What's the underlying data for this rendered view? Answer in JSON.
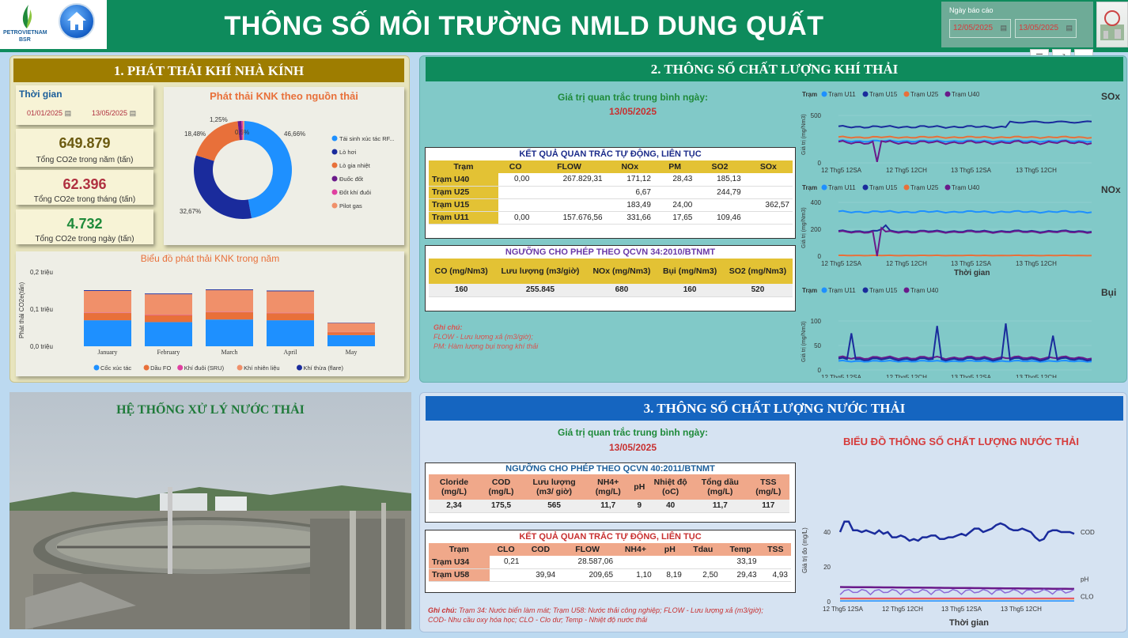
{
  "header": {
    "title": "THÔNG SỐ MÔI TRƯỜNG NMLD DUNG QUẤT",
    "logo_text": "PETROVIETNAM",
    "logo_sub": "BSR",
    "date_label": "Ngày báo cáo",
    "date_from": "12/05/2025",
    "date_to": "13/05/2025"
  },
  "section1": {
    "title": "1. PHÁT THẢI KHÍ NHÀ KÍNH",
    "time_label": "Thời gian",
    "time_from": "01/01/2025",
    "time_to": "13/05/2025",
    "kpis": [
      {
        "value": "649.879",
        "label": "Tổng CO2e trong năm (tấn)",
        "color": "#6b5a10"
      },
      {
        "value": "62.396",
        "label": "Tổng CO2e trong tháng (tấn)",
        "color": "#b03040"
      },
      {
        "value": "4.732",
        "label": "Tổng CO2e trong ngày (tấn)",
        "color": "#1f8a3a"
      }
    ],
    "donut": {
      "title": "Phát thải KNK theo nguồn thải",
      "slices": [
        {
          "name": "Tái sinh xúc tác RF...",
          "pct": 46.66,
          "label": "46,66%",
          "color": "#1e90ff"
        },
        {
          "name": "Lò hơi",
          "pct": 32.67,
          "label": "32,67%",
          "color": "#1a2b9c"
        },
        {
          "name": "Lò gia nhiệt",
          "pct": 18.48,
          "label": "18,48%",
          "color": "#e8703a"
        },
        {
          "name": "Đuốc đốt",
          "pct": 1.25,
          "label": "1,25%",
          "color": "#6a1a8a"
        },
        {
          "name": "Đốt khí đuôi",
          "pct": 0.5,
          "label": "0,5%",
          "color": "#e040a0"
        },
        {
          "name": "Pilot gas",
          "pct": 0.44,
          "label": "",
          "color": "#f0906a"
        }
      ]
    },
    "bar": {
      "title": "Biểu đồ phát thải KNK trong năm",
      "ylabel": "Phát thải CO2e(tấn)",
      "yticks": [
        "0,2 triệu",
        "0,1 triệu",
        "0,0 triệu"
      ],
      "ymax": 0.2,
      "categories": [
        "January",
        "February",
        "March",
        "April",
        "May"
      ],
      "series": [
        {
          "name": "Cốc xúc tác",
          "color": "#1e90ff",
          "values": [
            0.07,
            0.065,
            0.072,
            0.07,
            0.03
          ]
        },
        {
          "name": "Dầu FO",
          "color": "#e8703a",
          "values": [
            0.02,
            0.018,
            0.02,
            0.019,
            0.008
          ]
        },
        {
          "name": "Khí đuôi (SRU)",
          "color": "#e040a0",
          "values": [
            0.001,
            0.001,
            0.001,
            0.001,
            0.0005
          ]
        },
        {
          "name": "Khí nhiên liệu",
          "color": "#f0906a",
          "values": [
            0.058,
            0.056,
            0.058,
            0.058,
            0.024
          ]
        },
        {
          "name": "Khí thừa (flare)",
          "color": "#1a2b9c",
          "values": [
            0.002,
            0.002,
            0.002,
            0.002,
            0.001
          ]
        }
      ]
    }
  },
  "section2": {
    "title": "2. THÔNG SỐ CHẤT LƯỢNG KHÍ THẢI",
    "avg_label": "Giá trị quan trắc trung bình ngày:",
    "avg_date": "13/05/2025",
    "auto_title": "KẾT QUẢ QUAN TRẮC TỰ ĐỘNG, LIÊN TỤC",
    "auto_headers": [
      "Trạm",
      "CO",
      "FLOW",
      "NOx",
      "PM",
      "SO2",
      "SOx"
    ],
    "auto_rows": [
      [
        "Trạm U40",
        "0,00",
        "267.829,31",
        "171,12",
        "28,43",
        "185,13",
        ""
      ],
      [
        "Trạm U25",
        "",
        "",
        "6,67",
        "",
        "244,79",
        ""
      ],
      [
        "Trạm U15",
        "",
        "",
        "183,49",
        "24,00",
        "",
        "362,57"
      ],
      [
        "Trạm U11",
        "0,00",
        "157.676,56",
        "331,66",
        "17,65",
        "109,46",
        ""
      ]
    ],
    "limit_title": "NGƯỠNG CHO PHÉP THEO QCVN 34:2010/BTNMT",
    "limit_headers": [
      "CO (mg/Nm3)",
      "Lưu lượng (m3/giờ)",
      "NOx (mg/Nm3)",
      "Bụi (mg/Nm3)",
      "SO2 (mg/Nm3)"
    ],
    "limit_values": [
      "160",
      "255.845",
      "680",
      "160",
      "520"
    ],
    "note_title": "Ghi chú:",
    "note1": "FLOW - Lưu lượng xả (m3/giờ);",
    "note2": "PM: Hàm lượng bụi trong khí thải",
    "charts": [
      {
        "name": "SOx",
        "legend": [
          "Trạm U11",
          "Trạm U15",
          "Trạm U25",
          "Trạm U40"
        ],
        "yticks": [
          "500",
          "0"
        ],
        "xticks": [
          "12 Thg5 12SA",
          "12 Thg5 12CH",
          "13 Thg5 12SA",
          "13 Thg5 12CH"
        ]
      },
      {
        "name": "NOx",
        "legend": [
          "Trạm U11",
          "Trạm U15",
          "Trạm U25",
          "Trạm U40"
        ],
        "yticks": [
          "400",
          "200",
          "0"
        ],
        "xticks": [
          "12 Thg5 12SA",
          "12 Thg5 12CH",
          "13 Thg5 12SA",
          "13 Thg5 12CH"
        ],
        "xlabel": "Thời gian"
      },
      {
        "name": "Bụi",
        "legend": [
          "Trạm U11",
          "Trạm U15",
          "Trạm U40"
        ],
        "yticks": [
          "100",
          "50",
          "0"
        ],
        "xticks": [
          "12 Thg5 12SA",
          "12 Thg5 12CH",
          "13 Thg5 12SA",
          "13 Thg5 12CH"
        ]
      }
    ],
    "legend_prefix": "Trạm",
    "ylabel": "Giá trị (mg/Nm3)"
  },
  "section_photo": {
    "title": "HỆ THỐNG XỬ LÝ NƯỚC THẢI"
  },
  "section3": {
    "title": "3. THÔNG SỐ CHẤT LƯỢNG NƯỚC THẢI",
    "avg_label": "Giá trị quan trắc trung bình ngày:",
    "avg_date": "13/05/2025",
    "limit_title": "NGƯỠNG CHO PHÉP THEO QCVN 40:2011/BTNMT",
    "limit_headers": [
      "Cloride (mg/L)",
      "COD (mg/L)",
      "Lưu lượng (m3/ giờ)",
      "NH4+ (mg/L)",
      "pH",
      "Nhiệt độ (oC)",
      "Tổng dầu (mg/L)",
      "TSS (mg/L)"
    ],
    "limit_values": [
      "2,34",
      "175,5",
      "565",
      "11,7",
      "9",
      "40",
      "11,7",
      "117"
    ],
    "auto_title": "KẾT QUẢ QUAN TRẮC TỰ ĐỘNG, LIÊN TỤC",
    "auto_headers": [
      "Trạm",
      "CLO",
      "COD",
      "FLOW",
      "NH4+",
      "pH",
      "Tdau",
      "Temp",
      "TSS"
    ],
    "auto_rows": [
      [
        "Trạm U34",
        "0,21",
        "",
        "28.587,06",
        "",
        "",
        "",
        "33,19",
        ""
      ],
      [
        "Trạm U58",
        "",
        "39,94",
        "209,65",
        "1,10",
        "8,19",
        "2,50",
        "29,43",
        "4,93"
      ]
    ],
    "note_title": "Ghi chú:",
    "note1": "Trạm 34: Nước biển làm mát; Trạm U58: Nước thải công nghiệp; FLOW - Lưu lượng xả (m3/giờ);",
    "note2": "COD- Nhu cầu oxy hóa học; CLO - Clo dư; Temp - Nhiệt độ nước thải",
    "chart_title": "BIỂU ĐỒ THÔNG SỐ CHẤT LƯỢNG NƯỚC THẢI",
    "chart_ylabel": "Giá trị đo (mg/L)",
    "chart_xlabel": "Thời gian",
    "chart_yticks": [
      "40",
      "20",
      "0"
    ],
    "chart_xticks": [
      "12 Thg5 12SA",
      "12 Thg5 12CH",
      "13 Thg5 12SA",
      "13 Thg5 12CH"
    ],
    "series_labels": [
      "COD",
      "pH",
      "CLO"
    ]
  },
  "colors": {
    "header": "#0e8b5c",
    "section1_band": "#9e7d00",
    "section2_band": "#0e8b5c",
    "section3_band": "#1565c0",
    "table_header": "#e3c234",
    "water_header": "#f0a88a"
  }
}
